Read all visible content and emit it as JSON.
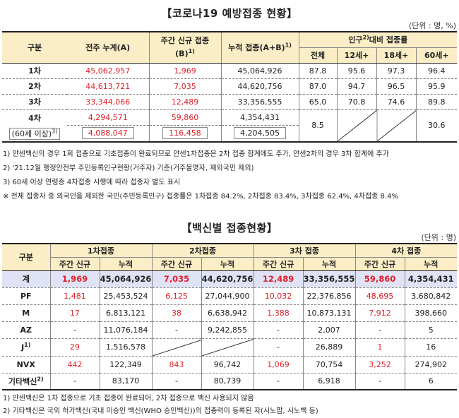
{
  "section1": {
    "title": "【코로나19 예방접종 현황】",
    "unit": "(단위 : 명, %)",
    "headers": {
      "category": "구분",
      "prev_total": "전주 누계(A)",
      "weekly_new_line1": "주간 신규 접종",
      "weekly_new_line2": "(B)",
      "weekly_new_sup": "1)",
      "cumulative": "누적 접종(A+B)",
      "cumulative_sup": "1)",
      "pop_ratio_pre": "인구",
      "pop_ratio_sup": "2)",
      "pop_ratio_post": "대비 접종률",
      "all": "전체",
      "age12": "12세+",
      "age18": "18세+",
      "age60": "60세+"
    },
    "rows": [
      {
        "label": "1차",
        "prev": "45,062,957",
        "weekly": "1,969",
        "cum": "45,064,926",
        "all": "87.8",
        "age12": "95.6",
        "age18": "97.3",
        "age60": "96.4"
      },
      {
        "label": "2차",
        "prev": "44,613,721",
        "weekly": "7,035",
        "cum": "44,620,756",
        "all": "87.0",
        "age12": "94.7",
        "age18": "96.5",
        "age60": "95.9"
      },
      {
        "label": "3차",
        "prev": "33,344,066",
        "weekly": "12,489",
        "cum": "33,356,555",
        "all": "65.0",
        "age12": "70.8",
        "age18": "74.6",
        "age60": "89.8"
      },
      {
        "label": "4차",
        "prev": "4,294,571",
        "weekly": "59,860",
        "cum": "4,354,431",
        "all": "8.5",
        "age60": "30.6"
      },
      {
        "label": "(60세 이상)",
        "label_sup": "3)",
        "prev": "4,088,047",
        "weekly": "116,458",
        "cum": "4,204,505"
      }
    ],
    "notes": [
      "1) 얀센백신의 경우 1회 접종으로 기초접종이 완료되므로 얀센1차접종은 2차 접종 합계에도 추가, 얀센2차의 경우 3차 합계에 추가",
      "2) '21.12월 행정안전부 주민등록인구현황(거주자) 기준(거주불명자, 재외국민 제외)",
      "3) 60세 이상 연령층 4차접종 시행에 따라 접종자 별도 표시",
      "※ 전체 접종자 중 외국인을 제외한 국민(주민등록인구) 접종률은 1차접종 84.2%, 2차접종 83.4%, 3차접종 62.4%, 4차접종 8.4%"
    ]
  },
  "section2": {
    "title": "【백신별 접종현황】",
    "unit": "(단위 : 명)",
    "headers": {
      "category": "구분",
      "dose1": "1차접종",
      "dose2": "2차접종",
      "dose3": "3차 접종",
      "dose4": "4차 접종",
      "weekly": "주간 신규",
      "cum": "누적"
    },
    "rows": [
      {
        "label": "계",
        "v": [
          "1,969",
          "45,064,926",
          "7,035",
          "44,620,756",
          "12,489",
          "33,356,555",
          "59,860",
          "4,354,431"
        ]
      },
      {
        "label": "PF",
        "v": [
          "1,481",
          "25,453,524",
          "6,125",
          "27,044,900",
          "10,032",
          "22,376,856",
          "48,695",
          "3,680,842"
        ]
      },
      {
        "label": "M",
        "v": [
          "17",
          "6,813,121",
          "38",
          "6,638,942",
          "1,388",
          "10,873,131",
          "7,912",
          "398,660"
        ]
      },
      {
        "label": "AZ",
        "v": [
          "-",
          "11,076,184",
          "-",
          "9,242,855",
          "-",
          "2,007",
          "-",
          "5"
        ]
      },
      {
        "label": "J",
        "label_sup": "1)",
        "v": [
          "29",
          "1,516,578",
          "",
          "",
          "-",
          "26,889",
          "1",
          "16"
        ]
      },
      {
        "label": "NVX",
        "v": [
          "442",
          "122,349",
          "843",
          "96,742",
          "1,069",
          "70,754",
          "3,252",
          "274,902"
        ]
      },
      {
        "label": "기타백신",
        "label_sup": "2)",
        "v": [
          "-",
          "83,170",
          "-",
          "80,739",
          "-",
          "6,918",
          "-",
          "6"
        ]
      }
    ],
    "notes": [
      "1) 얀센백신은 1차 접종으로 기초 접종이 완료되어, 2차 접종으로 백신 사용되지 않음",
      "2) 기타백신은 국외 허가백신(국내 미승인 백신(WHO 승인백신))의 접종력이 등록된 자(시노팜, 시노백 등)"
    ]
  }
}
